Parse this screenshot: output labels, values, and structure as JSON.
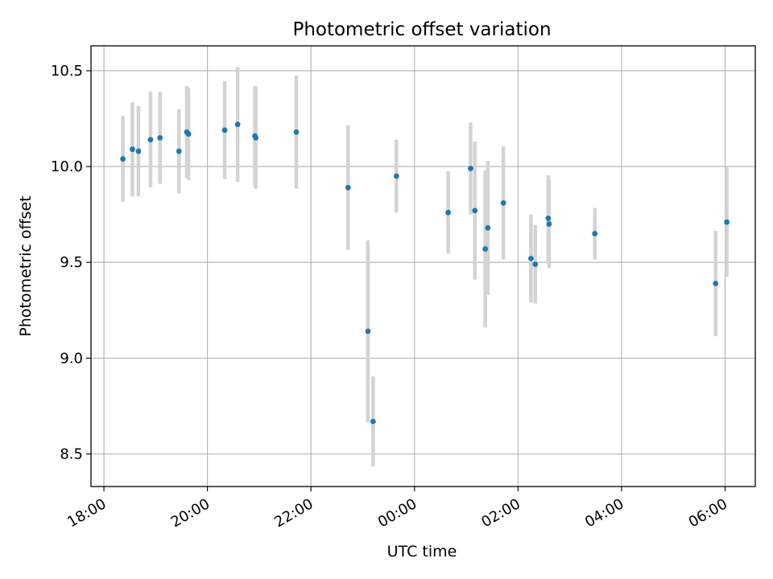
{
  "chart_data": {
    "type": "scatter",
    "title": "Photometric offset variation",
    "xlabel": "UTC time",
    "ylabel": "Photometric offset",
    "x_unit": "UTC time (hours after 18:00 on the first night)",
    "xlim": [
      "17:45",
      "06:35"
    ],
    "ylim": [
      8.33,
      10.63
    ],
    "x_ticks": [
      "18:00",
      "20:00",
      "22:00",
      "00:00",
      "02:00",
      "04:00",
      "06:00"
    ],
    "y_ticks": [
      "8.5",
      "9.0",
      "9.5",
      "10.0",
      "10.5"
    ],
    "grid": true,
    "point_color": "#1f77b4",
    "errorbar_color": "#d3d3d3",
    "points": [
      {
        "x": "18:22",
        "y": 10.04,
        "err": 0.225
      },
      {
        "x": "18:33",
        "y": 10.09,
        "err": 0.245
      },
      {
        "x": "18:40",
        "y": 10.08,
        "err": 0.235
      },
      {
        "x": "18:54",
        "y": 10.14,
        "err": 0.25
      },
      {
        "x": "19:05",
        "y": 10.15,
        "err": 0.24
      },
      {
        "x": "19:27",
        "y": 10.08,
        "err": 0.22
      },
      {
        "x": "19:36",
        "y": 10.18,
        "err": 0.24
      },
      {
        "x": "19:38",
        "y": 10.17,
        "err": 0.24
      },
      {
        "x": "20:20",
        "y": 10.19,
        "err": 0.255
      },
      {
        "x": "20:35",
        "y": 10.22,
        "err": 0.3
      },
      {
        "x": "20:55",
        "y": 10.16,
        "err": 0.26
      },
      {
        "x": "20:56",
        "y": 10.15,
        "err": 0.265
      },
      {
        "x": "21:43",
        "y": 10.18,
        "err": 0.295
      },
      {
        "x": "22:43",
        "y": 9.89,
        "err": 0.325
      },
      {
        "x": "23:06",
        "y": 9.14,
        "err": 0.475
      },
      {
        "x": "23:12",
        "y": 8.67,
        "err": 0.235
      },
      {
        "x": "23:39",
        "y": 9.95,
        "err": 0.19
      },
      {
        "x": "00:39",
        "y": 9.76,
        "err": 0.215
      },
      {
        "x": "01:05",
        "y": 9.99,
        "err": 0.24
      },
      {
        "x": "01:10",
        "y": 9.77,
        "err": 0.36
      },
      {
        "x": "01:22",
        "y": 9.57,
        "err": 0.41
      },
      {
        "x": "01:25",
        "y": 9.68,
        "err": 0.35
      },
      {
        "x": "01:43",
        "y": 9.81,
        "err": 0.295
      },
      {
        "x": "02:15",
        "y": 9.52,
        "err": 0.23
      },
      {
        "x": "02:20",
        "y": 9.49,
        "err": 0.205
      },
      {
        "x": "02:35",
        "y": 9.73,
        "err": 0.225
      },
      {
        "x": "02:36",
        "y": 9.7,
        "err": 0.23
      },
      {
        "x": "03:29",
        "y": 9.65,
        "err": 0.135
      },
      {
        "x": "05:49",
        "y": 9.39,
        "err": 0.275
      },
      {
        "x": "06:02",
        "y": 9.71,
        "err": 0.285
      }
    ]
  }
}
